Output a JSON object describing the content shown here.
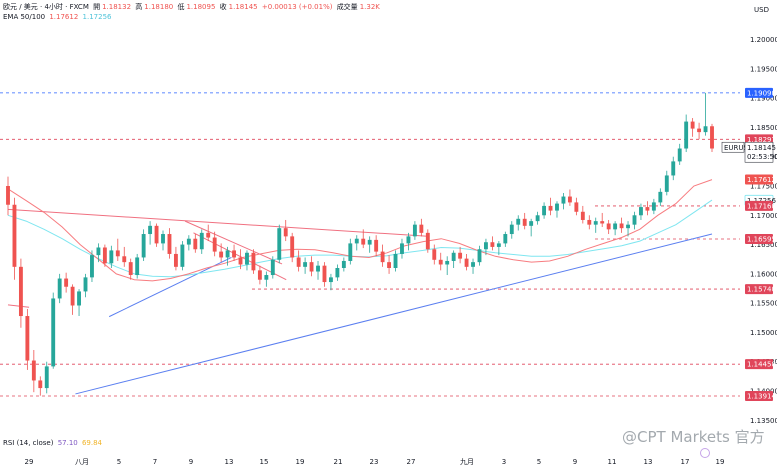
{
  "header": {
    "symbol_line": "欧元 / 美元 · 4小时 · FXCM",
    "open_label": "開",
    "open": "1.18132",
    "high_label": "高",
    "high": "1.18180",
    "low_label": "低",
    "low": "1.18095",
    "close_label": "收",
    "close": "1.18145",
    "change": "+0.00013 (+0.01%)",
    "volume_label": "成交量",
    "volume": "1.32K",
    "ema_label": "EMA 50/100",
    "ema_fast_value": "1.17612",
    "ema_slow_value": "1.17256",
    "rsi_label": "RSI (14, close)",
    "rsi_value": "57.10",
    "rsi_ma_value": "69.84"
  },
  "currency": "USD",
  "watermark": "@CPT Markets 官方",
  "colors": {
    "up": "#26a69a",
    "down": "#ef5350",
    "ema_fast": "#f77c80",
    "ema_slow": "#7fe6f0",
    "trend_blue": "#5b7ff0",
    "trend_red": "#f07080",
    "level_red": "#e0455a",
    "level_blue": "#2962ff"
  },
  "chart_data": {
    "type": "candlestick",
    "symbol": "EURUSD",
    "y_ticks": [
      "1.20000",
      "1.19500",
      "1.19000",
      "1.18500",
      "1.18000",
      "1.17500",
      "1.17000",
      "1.16500",
      "1.16000",
      "1.15500",
      "1.15000",
      "1.14500",
      "1.14000",
      "1.13500"
    ],
    "x_ticks": [
      "29",
      "八月",
      "5",
      "7",
      "9",
      "13",
      "15",
      "19",
      "21",
      "23",
      "27",
      "九月",
      "3",
      "5",
      "9",
      "11",
      "13",
      "17",
      "19"
    ],
    "price_labels": [
      {
        "value": "1.19090",
        "kind": "blue"
      },
      {
        "value": "1.18297",
        "kind": "red"
      },
      {
        "value": "1.18145",
        "kind": "current",
        "symbol": "EURUSD",
        "countdown": "02:53:50"
      },
      {
        "value": "1.17612",
        "kind": "ema_fast"
      },
      {
        "value": "1.17256",
        "kind": "ema_slow"
      },
      {
        "value": "1.17160",
        "kind": "red"
      },
      {
        "value": "1.16595",
        "kind": "red"
      },
      {
        "value": "1.15740",
        "kind": "red"
      },
      {
        "value": "1.14458",
        "kind": "red"
      },
      {
        "value": "1.13914",
        "kind": "red"
      }
    ],
    "horizontal_levels": [
      {
        "value": 1.1909,
        "color": "blue",
        "style": "dashed"
      },
      {
        "value": 1.18297,
        "color": "red",
        "style": "dashed"
      },
      {
        "value": 1.1716,
        "color": "red",
        "style": "dashed"
      },
      {
        "value": 1.16595,
        "color": "red",
        "style": "dashed"
      },
      {
        "value": 1.1574,
        "color": "red",
        "style": "dashed"
      },
      {
        "value": 1.14458,
        "color": "red",
        "style": "dashed"
      },
      {
        "value": 1.13914,
        "color": "red",
        "style": "dashed"
      }
    ],
    "trendlines": [
      {
        "color": "blue",
        "from": [
          16,
          1.1395
        ],
        "to": [
          167,
          1.1668
        ]
      },
      {
        "color": "blue",
        "from": [
          24,
          1.1527
        ],
        "to": [
          53,
          1.1628
        ]
      },
      {
        "color": "red",
        "from": [
          0,
          1.171
        ],
        "to": [
          100,
          1.1664
        ]
      },
      {
        "color": "red",
        "from": [
          42,
          1.169
        ],
        "to": [
          65,
          1.1617
        ]
      },
      {
        "color": "red",
        "from": [
          44,
          1.167
        ],
        "to": [
          66,
          1.159
        ]
      },
      {
        "color": "red",
        "from": [
          0,
          1.1547
        ],
        "to": [
          5,
          1.1543
        ]
      }
    ],
    "ohlc": [
      [
        1.175,
        1.1766,
        1.17,
        1.1718
      ],
      [
        1.1718,
        1.173,
        1.159,
        1.1612
      ],
      [
        1.1612,
        1.1626,
        1.1508,
        1.1528
      ],
      [
        1.1528,
        1.154,
        1.1436,
        1.1452
      ],
      [
        1.1452,
        1.147,
        1.1398,
        1.1418
      ],
      [
        1.1418,
        1.1425,
        1.1392,
        1.1405
      ],
      [
        1.1405,
        1.145,
        1.1396,
        1.1442
      ],
      [
        1.1442,
        1.1568,
        1.1438,
        1.1558
      ],
      [
        1.1558,
        1.16,
        1.155,
        1.1592
      ],
      [
        1.1592,
        1.1602,
        1.1568,
        1.1578
      ],
      [
        1.1578,
        1.1582,
        1.153,
        1.1546
      ],
      [
        1.1546,
        1.1574,
        1.1528,
        1.157
      ],
      [
        1.157,
        1.16,
        1.156,
        1.1594
      ],
      [
        1.1594,
        1.164,
        1.1586,
        1.1632
      ],
      [
        1.1632,
        1.1652,
        1.162,
        1.1645
      ],
      [
        1.1645,
        1.165,
        1.1612,
        1.1618
      ],
      [
        1.1618,
        1.1648,
        1.161,
        1.164
      ],
      [
        1.164,
        1.166,
        1.1622,
        1.163
      ],
      [
        1.163,
        1.1646,
        1.1612,
        1.162
      ],
      [
        1.162,
        1.1626,
        1.159,
        1.1598
      ],
      [
        1.1598,
        1.1634,
        1.1592,
        1.1628
      ],
      [
        1.1628,
        1.1676,
        1.1622,
        1.1668
      ],
      [
        1.1668,
        1.169,
        1.165,
        1.1682
      ],
      [
        1.1682,
        1.1686,
        1.1646,
        1.1652
      ],
      [
        1.1652,
        1.1674,
        1.164,
        1.1668
      ],
      [
        1.1668,
        1.1678,
        1.1626,
        1.1634
      ],
      [
        1.1634,
        1.1646,
        1.1606,
        1.1612
      ],
      [
        1.1612,
        1.1656,
        1.1606,
        1.165
      ],
      [
        1.165,
        1.1666,
        1.164,
        1.166
      ],
      [
        1.166,
        1.1668,
        1.1636,
        1.1642
      ],
      [
        1.1642,
        1.1676,
        1.1634,
        1.167
      ],
      [
        1.167,
        1.1684,
        1.1656,
        1.1662
      ],
      [
        1.1662,
        1.1672,
        1.163,
        1.1638
      ],
      [
        1.1638,
        1.1652,
        1.162,
        1.1628
      ],
      [
        1.1628,
        1.1646,
        1.1614,
        1.164
      ],
      [
        1.164,
        1.165,
        1.1622,
        1.1628
      ],
      [
        1.1628,
        1.1642,
        1.1608,
        1.1616
      ],
      [
        1.1616,
        1.164,
        1.1606,
        1.1636
      ],
      [
        1.1636,
        1.1642,
        1.16,
        1.1606
      ],
      [
        1.1606,
        1.1614,
        1.1582,
        1.159
      ],
      [
        1.159,
        1.1604,
        1.1578,
        1.1598
      ],
      [
        1.1598,
        1.163,
        1.1592,
        1.1624
      ],
      [
        1.1624,
        1.1684,
        1.1618,
        1.1678
      ],
      [
        1.1678,
        1.1692,
        1.1656,
        1.1664
      ],
      [
        1.1664,
        1.167,
        1.162,
        1.1628
      ],
      [
        1.1628,
        1.164,
        1.1604,
        1.1612
      ],
      [
        1.1612,
        1.1628,
        1.16,
        1.162
      ],
      [
        1.162,
        1.163,
        1.1596,
        1.1604
      ],
      [
        1.1604,
        1.1622,
        1.159,
        1.1614
      ],
      [
        1.1614,
        1.162,
        1.1578,
        1.1586
      ],
      [
        1.1586,
        1.16,
        1.1572,
        1.1594
      ],
      [
        1.1594,
        1.1616,
        1.1588,
        1.161
      ],
      [
        1.161,
        1.1628,
        1.1604,
        1.1622
      ],
      [
        1.1622,
        1.166,
        1.1616,
        1.1652
      ],
      [
        1.1652,
        1.1666,
        1.164,
        1.166
      ],
      [
        1.166,
        1.1676,
        1.1644,
        1.165
      ],
      [
        1.165,
        1.1664,
        1.1636,
        1.1658
      ],
      [
        1.1658,
        1.1666,
        1.163,
        1.1638
      ],
      [
        1.1638,
        1.165,
        1.1612,
        1.162
      ],
      [
        1.162,
        1.1632,
        1.16,
        1.161
      ],
      [
        1.161,
        1.164,
        1.1604,
        1.1634
      ],
      [
        1.1634,
        1.166,
        1.1626,
        1.1652
      ],
      [
        1.1652,
        1.167,
        1.164,
        1.1664
      ],
      [
        1.1664,
        1.169,
        1.1658,
        1.1684
      ],
      [
        1.1684,
        1.1694,
        1.1664,
        1.167
      ],
      [
        1.167,
        1.1676,
        1.1636,
        1.1642
      ],
      [
        1.1642,
        1.165,
        1.1616,
        1.1624
      ],
      [
        1.1624,
        1.1636,
        1.1606,
        1.1616
      ],
      [
        1.1616,
        1.163,
        1.1598,
        1.1622
      ],
      [
        1.1622,
        1.164,
        1.161,
        1.1636
      ],
      [
        1.1636,
        1.1646,
        1.1618,
        1.1626
      ],
      [
        1.1626,
        1.1634,
        1.1606,
        1.1612
      ],
      [
        1.1612,
        1.1626,
        1.16,
        1.162
      ],
      [
        1.162,
        1.1648,
        1.1614,
        1.1642
      ],
      [
        1.1642,
        1.166,
        1.1632,
        1.1654
      ],
      [
        1.1654,
        1.1664,
        1.164,
        1.1646
      ],
      [
        1.1646,
        1.1656,
        1.1632,
        1.1652
      ],
      [
        1.1652,
        1.1672,
        1.1646,
        1.1668
      ],
      [
        1.1668,
        1.169,
        1.166,
        1.1684
      ],
      [
        1.1684,
        1.17,
        1.1674,
        1.1694
      ],
      [
        1.1694,
        1.1704,
        1.1676,
        1.1682
      ],
      [
        1.1682,
        1.1694,
        1.1664,
        1.169
      ],
      [
        1.169,
        1.1706,
        1.1684,
        1.17
      ],
      [
        1.17,
        1.1722,
        1.1694,
        1.1716
      ],
      [
        1.1716,
        1.173,
        1.17,
        1.1708
      ],
      [
        1.1708,
        1.1724,
        1.1696,
        1.172
      ],
      [
        1.172,
        1.1738,
        1.171,
        1.1732
      ],
      [
        1.1732,
        1.1744,
        1.1716,
        1.1722
      ],
      [
        1.1722,
        1.173,
        1.17,
        1.1706
      ],
      [
        1.1706,
        1.1716,
        1.1686,
        1.1692
      ],
      [
        1.1692,
        1.17,
        1.1676,
        1.1684
      ],
      [
        1.1684,
        1.1696,
        1.167,
        1.169
      ],
      [
        1.169,
        1.1704,
        1.168,
        1.1686
      ],
      [
        1.1686,
        1.1692,
        1.1668,
        1.1676
      ],
      [
        1.1676,
        1.169,
        1.1666,
        1.1686
      ],
      [
        1.1686,
        1.1696,
        1.167,
        1.1678
      ],
      [
        1.1678,
        1.169,
        1.1664,
        1.1684
      ],
      [
        1.1684,
        1.1706,
        1.1676,
        1.17
      ],
      [
        1.17,
        1.172,
        1.1692,
        1.1714
      ],
      [
        1.1714,
        1.1724,
        1.17,
        1.1708
      ],
      [
        1.1708,
        1.1728,
        1.1702,
        1.1722
      ],
      [
        1.1722,
        1.1746,
        1.1716,
        1.174
      ],
      [
        1.174,
        1.1776,
        1.1734,
        1.1768
      ],
      [
        1.1768,
        1.18,
        1.176,
        1.1792
      ],
      [
        1.1792,
        1.1822,
        1.1786,
        1.1814
      ],
      [
        1.1814,
        1.1872,
        1.1808,
        1.186
      ],
      [
        1.186,
        1.1866,
        1.1834,
        1.1848
      ],
      [
        1.1848,
        1.1858,
        1.183,
        1.1842
      ],
      [
        1.1842,
        1.1909,
        1.1836,
        1.1852
      ],
      [
        1.1852,
        1.1856,
        1.1808,
        1.1814
      ]
    ],
    "ema_fast_overlay": [
      1.1745,
      1.1725,
      1.1705,
      1.168,
      1.165,
      1.1625,
      1.16,
      1.159,
      1.1588,
      1.1592,
      1.16,
      1.161,
      1.1618,
      1.1628,
      1.1634,
      1.164,
      1.1642,
      1.1641,
      1.1636,
      1.163,
      1.1628,
      1.1636,
      1.1648,
      1.1655,
      1.166,
      1.1652,
      1.164,
      1.163,
      1.1624,
      1.162,
      1.1622,
      1.163,
      1.1642,
      1.1652,
      1.1662,
      1.1676,
      1.17,
      1.172,
      1.175,
      1.1761
    ],
    "ema_slow_overlay": [
      1.17,
      1.169,
      1.1676,
      1.166,
      1.1642,
      1.1626,
      1.1612,
      1.16,
      1.1596,
      1.1595,
      1.1598,
      1.1603,
      1.1608,
      1.1614,
      1.162,
      1.1626,
      1.163,
      1.1632,
      1.1632,
      1.163,
      1.1629,
      1.1631,
      1.1636,
      1.164,
      1.1645,
      1.1644,
      1.164,
      1.1636,
      1.1633,
      1.163,
      1.163,
      1.1633,
      1.1638,
      1.1643,
      1.1648,
      1.1656,
      1.167,
      1.1684,
      1.1705,
      1.1726
    ],
    "ylim": [
      1.133,
      1.203
    ]
  }
}
